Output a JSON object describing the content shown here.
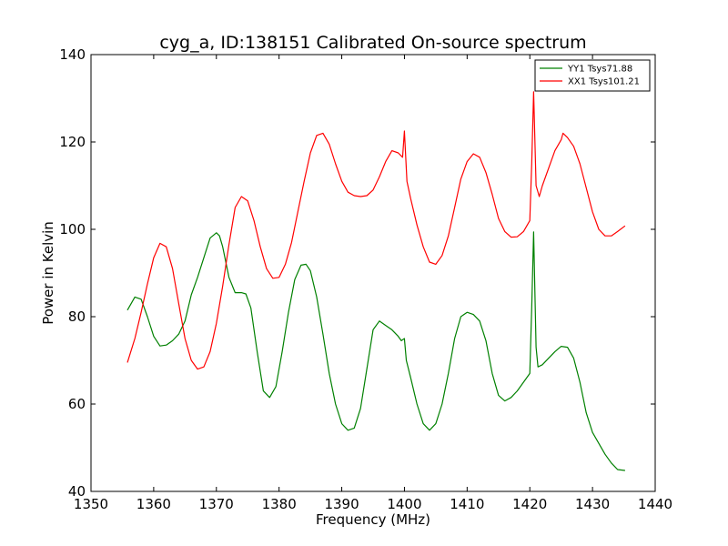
{
  "chart_data": {
    "type": "line",
    "title": "cyg_a, ID:138151 Calibrated On-source spectrum",
    "xlabel": "Frequency (MHz)",
    "ylabel": "Power in Kelvin",
    "xlim": [
      1350,
      1440
    ],
    "ylim": [
      40,
      140
    ],
    "xticks": [
      1350,
      1360,
      1370,
      1380,
      1390,
      1400,
      1410,
      1420,
      1430,
      1440
    ],
    "yticks": [
      40,
      60,
      80,
      100,
      120,
      140
    ],
    "grid": false,
    "legend_position": "top-right",
    "series": [
      {
        "name": "YY1 Tsys71.88",
        "color": "#008000",
        "x": [
          1355.8,
          1357,
          1358,
          1359,
          1360,
          1361,
          1362,
          1363,
          1364,
          1365,
          1366,
          1367,
          1368,
          1369,
          1370,
          1370.5,
          1371,
          1372,
          1373,
          1374,
          1374.7,
          1375.5,
          1376.5,
          1377.5,
          1378.5,
          1379.5,
          1380.5,
          1381.5,
          1382.5,
          1383.5,
          1384.3,
          1385,
          1386,
          1387,
          1388,
          1389,
          1390,
          1391,
          1392,
          1393,
          1394,
          1395,
          1396,
          1397,
          1398,
          1399,
          1399.5,
          1400,
          1400.3,
          1401,
          1402,
          1403,
          1404,
          1405,
          1406,
          1407,
          1408,
          1409,
          1410,
          1411,
          1412,
          1413,
          1414,
          1415,
          1416,
          1417,
          1418,
          1419,
          1420,
          1420.3,
          1420.6,
          1421,
          1421.3,
          1422,
          1423,
          1424,
          1425,
          1426,
          1427,
          1428,
          1429,
          1430,
          1431,
          1432,
          1433,
          1434,
          1435.2
        ],
        "y": [
          81.5,
          84.5,
          84.0,
          80.0,
          75.5,
          73.3,
          73.5,
          74.5,
          76.0,
          79.0,
          85.0,
          89.0,
          93.5,
          98.0,
          99.2,
          98.5,
          96.0,
          89.0,
          85.5,
          85.5,
          85.2,
          82.0,
          72.0,
          63.0,
          61.5,
          64.0,
          72.0,
          81.0,
          88.5,
          91.8,
          92.0,
          90.5,
          84.5,
          76.0,
          67.0,
          60.0,
          55.5,
          54.0,
          54.5,
          59.0,
          68.0,
          77.0,
          79.0,
          78.0,
          77.0,
          75.5,
          74.5,
          75.0,
          70.0,
          66.0,
          60.0,
          55.5,
          54.0,
          55.5,
          60.0,
          67.0,
          75.0,
          80.0,
          81.0,
          80.5,
          79.0,
          74.5,
          67.0,
          62.0,
          60.7,
          61.5,
          63.0,
          65.0,
          67.0,
          82.0,
          99.4,
          73.0,
          68.5,
          69.0,
          70.5,
          72.0,
          73.2,
          73.0,
          70.5,
          65.0,
          58.0,
          53.5,
          51.0,
          48.5,
          46.5,
          45.0,
          44.8
        ]
      },
      {
        "name": "XX1 Tsys101.21",
        "color": "#ff0000",
        "x": [
          1355.8,
          1357,
          1358,
          1359,
          1360,
          1361,
          1362,
          1363,
          1364,
          1365,
          1366,
          1367,
          1368,
          1369,
          1370,
          1371,
          1372,
          1373,
          1374,
          1375,
          1376,
          1377,
          1378,
          1379,
          1380,
          1381,
          1382,
          1383,
          1384,
          1385,
          1386,
          1387,
          1388,
          1389,
          1390,
          1391,
          1392,
          1393,
          1394,
          1395,
          1396,
          1397,
          1398,
          1399,
          1399.7,
          1400,
          1400.4,
          1401,
          1402,
          1403,
          1404,
          1405,
          1406,
          1407,
          1408,
          1409,
          1410,
          1411,
          1412,
          1413,
          1414,
          1415,
          1416,
          1417,
          1418,
          1419,
          1420,
          1420.3,
          1420.6,
          1421,
          1421.5,
          1422,
          1423,
          1424,
          1425,
          1425.3,
          1426,
          1427,
          1428,
          1429,
          1430,
          1431,
          1432,
          1433,
          1434,
          1435.2
        ],
        "y": [
          69.5,
          75.0,
          81.0,
          87.5,
          93.5,
          96.8,
          96.0,
          91.0,
          83.0,
          75.0,
          70.0,
          68.0,
          68.5,
          72.0,
          78.5,
          87.0,
          96.5,
          105.0,
          107.5,
          106.5,
          102.0,
          96.0,
          91.0,
          88.8,
          89.0,
          92.0,
          97.0,
          104.0,
          111.0,
          117.5,
          121.5,
          122.0,
          119.5,
          115.0,
          111.0,
          108.5,
          107.7,
          107.5,
          107.7,
          109.0,
          112.0,
          115.5,
          118.0,
          117.5,
          116.5,
          122.5,
          111.0,
          107.0,
          101.0,
          96.0,
          92.5,
          92.0,
          94.0,
          98.5,
          105.0,
          111.5,
          115.5,
          117.3,
          116.5,
          113.0,
          108.0,
          102.5,
          99.5,
          98.2,
          98.3,
          99.5,
          102.0,
          115.0,
          131.5,
          110.0,
          107.5,
          110.0,
          114.0,
          118.0,
          120.5,
          122.0,
          121.0,
          119.0,
          115.0,
          109.5,
          104.0,
          100.0,
          98.5,
          98.5,
          99.5,
          100.8
        ]
      }
    ]
  }
}
